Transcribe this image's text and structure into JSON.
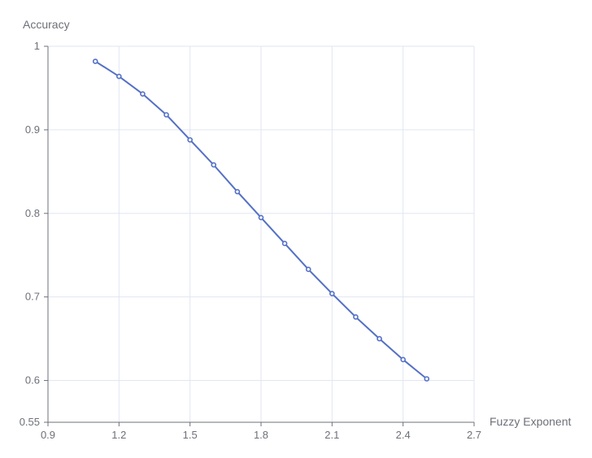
{
  "chart_data": {
    "type": "line",
    "xlabel": "Fuzzy Exponent",
    "ylabel": "Accuracy",
    "xlim": [
      0.9,
      2.7
    ],
    "ylim": [
      0.55,
      1
    ],
    "x_ticks": [
      "0.9",
      "1.2",
      "1.5",
      "1.8",
      "2.1",
      "2.4",
      "2.7"
    ],
    "y_ticks": [
      "0.55",
      "0.6",
      "0.7",
      "0.8",
      "0.9",
      "1"
    ],
    "grid": true,
    "series": [
      {
        "x": [
          1.1,
          1.2,
          1.3,
          1.4,
          1.5,
          1.6,
          1.7,
          1.8,
          1.9,
          2.0,
          2.1,
          2.2,
          2.3,
          2.4,
          2.5
        ],
        "y": [
          0.982,
          0.964,
          0.943,
          0.918,
          0.888,
          0.858,
          0.826,
          0.795,
          0.764,
          0.733,
          0.704,
          0.676,
          0.65,
          0.625,
          0.602
        ]
      }
    ],
    "colors": {
      "line": "#5470c6",
      "grid": "#e0e6f1",
      "axis": "#6e7079"
    }
  }
}
